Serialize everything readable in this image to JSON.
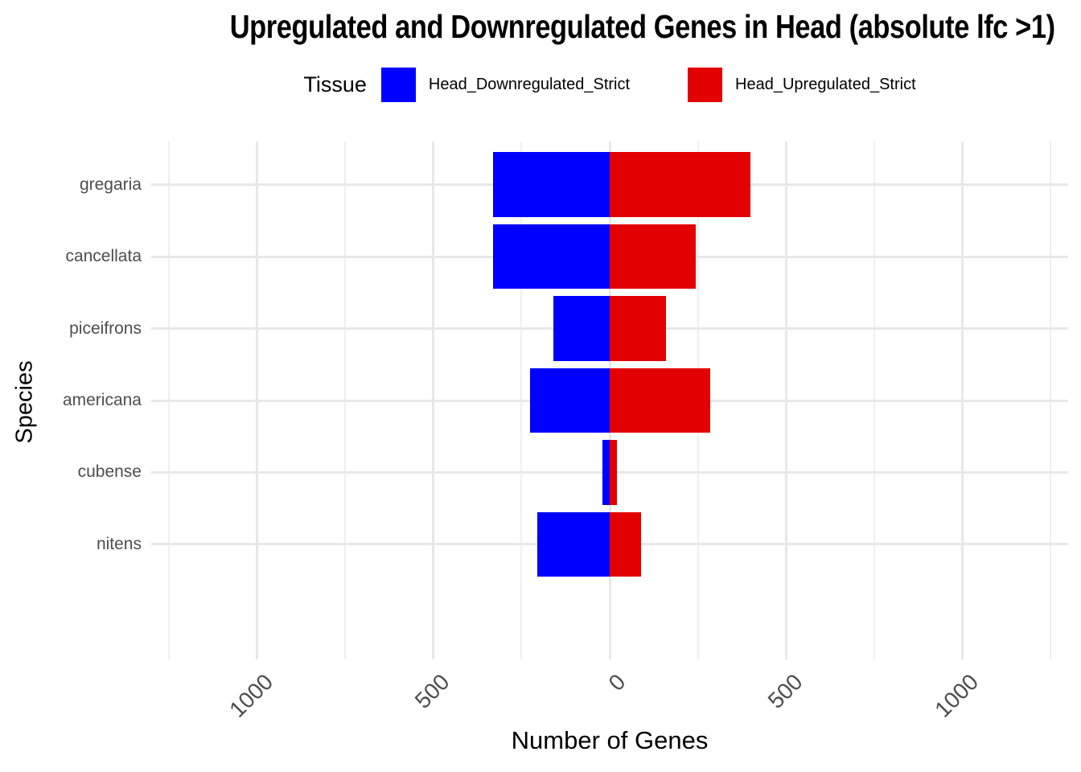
{
  "title": "Upregulated and Downregulated Genes in Head (absolute lfc >1)",
  "legend": {
    "title": "Tissue",
    "entries": [
      {
        "label": "Head_Downregulated_Strict",
        "color": "#0000FF"
      },
      {
        "label": "Head_Upregulated_Strict",
        "color": "#E20000"
      }
    ]
  },
  "axes": {
    "x_title": "Number of Genes",
    "y_title": "Species"
  },
  "chart_data": {
    "type": "bar",
    "orientation": "horizontal-diverging",
    "title": "Upregulated and Downregulated Genes in Head (absolute lfc >1)",
    "xlabel": "Number of Genes",
    "ylabel": "Species",
    "categories": [
      "gregaria",
      "cancellata",
      "piceifrons",
      "americana",
      "cubense",
      "nitens"
    ],
    "series": [
      {
        "name": "Head_Downregulated_Strict",
        "color": "#0000FF",
        "direction": "negative",
        "values": [
          330,
          330,
          160,
          225,
          20,
          205
        ]
      },
      {
        "name": "Head_Upregulated_Strict",
        "color": "#E20000",
        "direction": "positive",
        "values": [
          400,
          245,
          160,
          285,
          20,
          90
        ]
      }
    ],
    "xlim": [
      -1300,
      1300
    ],
    "x_major_ticks": [
      -1000,
      -500,
      0,
      500,
      1000
    ],
    "x_tick_labels": [
      "1000",
      "500",
      "0",
      "500",
      "1000"
    ],
    "x_minor_ticks": [
      -1250,
      -750,
      -250,
      250,
      750,
      1250
    ],
    "grid": true,
    "grid_color": "#E8E8E8",
    "background": "#FFFFFF",
    "legend_position": "top",
    "bar_width_fraction": 0.9,
    "note": "bar values estimated from gridlines"
  }
}
